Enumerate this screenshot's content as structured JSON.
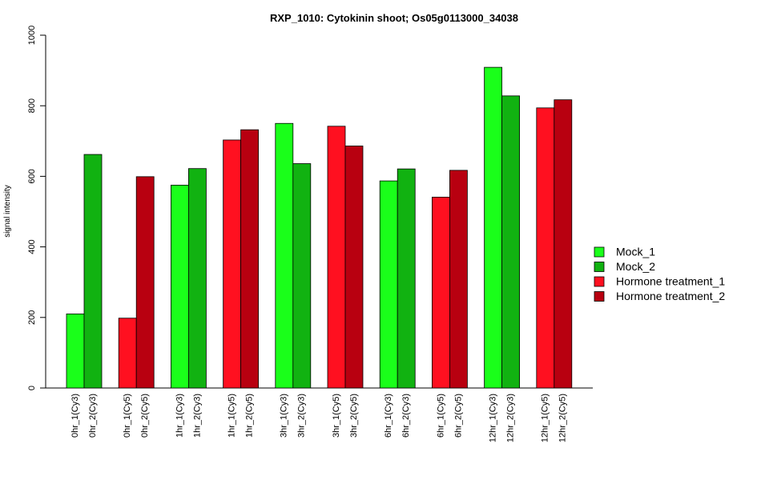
{
  "chart_data": {
    "type": "bar",
    "title": "RXP_1010: Cytokinin shoot; Os05g0113000_34038",
    "xlabel": "",
    "ylabel": "signal intensity",
    "ylim": [
      0,
      1000
    ],
    "yticks": [
      0,
      200,
      400,
      600,
      800,
      1000
    ],
    "grid": false,
    "legend_position": "right",
    "series": [
      {
        "name": "Mock_1",
        "color": "#1AFF1A"
      },
      {
        "name": "Mock_2",
        "color": "#11B211"
      },
      {
        "name": "Hormone treatment_1",
        "color": "#FF1020"
      },
      {
        "name": "Hormone treatment_2",
        "color": "#B80010"
      }
    ],
    "bars": [
      {
        "label": "0hr_1(Cy3)",
        "value": 210,
        "series": 0
      },
      {
        "label": "0hr_2(Cy3)",
        "value": 662,
        "series": 1
      },
      {
        "label": "0hr_1(Cy5)",
        "value": 198,
        "series": 2
      },
      {
        "label": "0hr_2(Cy5)",
        "value": 599,
        "series": 3
      },
      {
        "label": "1hr_1(Cy3)",
        "value": 575,
        "series": 0
      },
      {
        "label": "1hr_2(Cy3)",
        "value": 622,
        "series": 1
      },
      {
        "label": "1hr_1(Cy5)",
        "value": 703,
        "series": 2
      },
      {
        "label": "1hr_2(Cy5)",
        "value": 732,
        "series": 3
      },
      {
        "label": "3hr_1(Cy3)",
        "value": 750,
        "series": 0
      },
      {
        "label": "3hr_2(Cy3)",
        "value": 636,
        "series": 1
      },
      {
        "label": "3hr_1(Cy5)",
        "value": 742,
        "series": 2
      },
      {
        "label": "3hr_2(Cy5)",
        "value": 686,
        "series": 3
      },
      {
        "label": "6hr_1(Cy3)",
        "value": 587,
        "series": 0
      },
      {
        "label": "6hr_2(Cy3)",
        "value": 621,
        "series": 1
      },
      {
        "label": "6hr_1(Cy5)",
        "value": 541,
        "series": 2
      },
      {
        "label": "6hr_2(Cy5)",
        "value": 617,
        "series": 3
      },
      {
        "label": "12hr_1(Cy3)",
        "value": 909,
        "series": 0
      },
      {
        "label": "12hr_2(Cy3)",
        "value": 828,
        "series": 1
      },
      {
        "label": "12hr_1(Cy5)",
        "value": 794,
        "series": 2
      },
      {
        "label": "12hr_2(Cy5)",
        "value": 817,
        "series": 3
      }
    ]
  }
}
